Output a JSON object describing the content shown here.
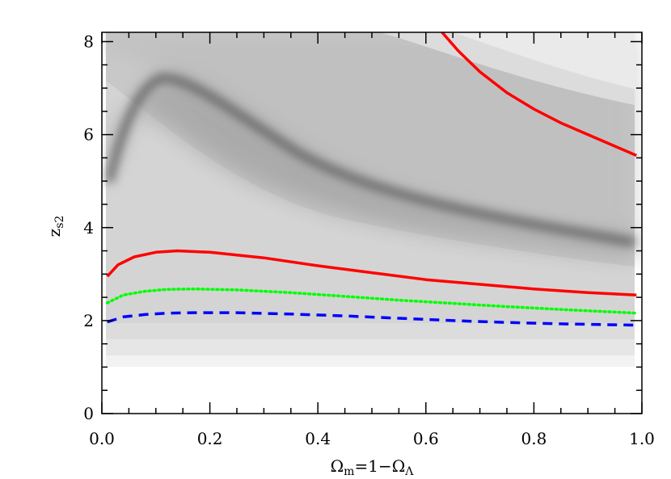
{
  "chart_data": {
    "type": "line",
    "title": "",
    "xlabel": {
      "main": "Ω",
      "sub": "m",
      "mid": "=1−Ω",
      "sub2": "Λ"
    },
    "ylabel": {
      "main": "z",
      "sub": "s2"
    },
    "xlim": [
      0.0,
      1.0
    ],
    "ylim": [
      0.0,
      8.2
    ],
    "x_ticks": [
      "0.0",
      "0.2",
      "0.4",
      "0.6",
      "0.8",
      "1.0"
    ],
    "y_ticks": [
      "0",
      "2",
      "4",
      "6",
      "8"
    ],
    "background": "filled contours of a quantity vs Ω_m and z_s2 (grayscale), with a dark ridge peaking near Ω_m≈0.1",
    "series": [
      {
        "color": "#ff0000",
        "style": "solid",
        "x": [
          0.01,
          0.03,
          0.06,
          0.1,
          0.14,
          0.2,
          0.3,
          0.4,
          0.5,
          0.6,
          0.7,
          0.8,
          0.9,
          0.99
        ],
        "y": [
          2.95,
          3.2,
          3.37,
          3.47,
          3.5,
          3.47,
          3.35,
          3.18,
          3.03,
          2.88,
          2.78,
          2.68,
          2.6,
          2.55
        ]
      },
      {
        "color": "#ff0000",
        "style": "solid",
        "x": [
          0.63,
          0.66,
          0.7,
          0.75,
          0.8,
          0.85,
          0.9,
          0.95,
          0.99
        ],
        "y": [
          8.2,
          7.8,
          7.35,
          6.9,
          6.55,
          6.25,
          6.0,
          5.75,
          5.55
        ]
      },
      {
        "color": "#00ff00",
        "style": "dotted",
        "x": [
          0.01,
          0.04,
          0.08,
          0.12,
          0.17,
          0.25,
          0.35,
          0.45,
          0.55,
          0.65,
          0.75,
          0.85,
          0.99
        ],
        "y": [
          2.38,
          2.55,
          2.63,
          2.67,
          2.68,
          2.66,
          2.6,
          2.52,
          2.44,
          2.37,
          2.3,
          2.24,
          2.16
        ]
      },
      {
        "color": "#0000ff",
        "style": "dashed",
        "x": [
          0.01,
          0.04,
          0.08,
          0.12,
          0.17,
          0.25,
          0.35,
          0.45,
          0.55,
          0.65,
          0.75,
          0.85,
          0.99
        ],
        "y": [
          1.97,
          2.08,
          2.13,
          2.16,
          2.17,
          2.17,
          2.14,
          2.1,
          2.05,
          2.0,
          1.96,
          1.93,
          1.9
        ]
      }
    ]
  }
}
